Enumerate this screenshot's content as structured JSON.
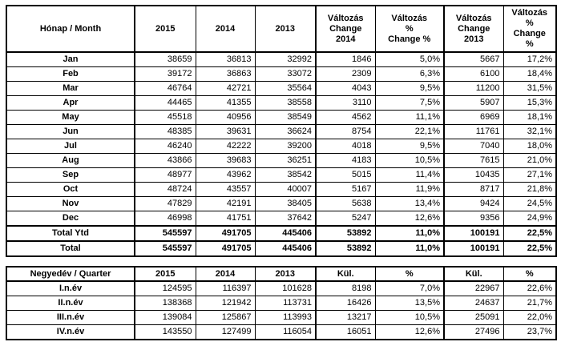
{
  "page": {
    "background_color": "#ffffff",
    "border_color": "#000000",
    "text_color": "#000000"
  },
  "monthly_table": {
    "headers": [
      "Hónap / Month",
      "2015",
      "2014",
      "2013",
      "Változás\nChange\n2014",
      "Változás\n%\nChange %",
      "Változás\nChange\n2013",
      "Változás\n%\nChange\n%"
    ],
    "rows": [
      {
        "label": "Jan",
        "values": [
          "38659",
          "36813",
          "32992",
          "1846",
          "5,0%",
          "5667",
          "17,2%"
        ]
      },
      {
        "label": "Feb",
        "values": [
          "39172",
          "36863",
          "33072",
          "2309",
          "6,3%",
          "6100",
          "18,4%"
        ]
      },
      {
        "label": "Mar",
        "values": [
          "46764",
          "42721",
          "35564",
          "4043",
          "9,5%",
          "11200",
          "31,5%"
        ]
      },
      {
        "label": "Apr",
        "values": [
          "44465",
          "41355",
          "38558",
          "3110",
          "7,5%",
          "5907",
          "15,3%"
        ]
      },
      {
        "label": "May",
        "values": [
          "45518",
          "40956",
          "38549",
          "4562",
          "11,1%",
          "6969",
          "18,1%"
        ]
      },
      {
        "label": "Jun",
        "values": [
          "48385",
          "39631",
          "36624",
          "8754",
          "22,1%",
          "11761",
          "32,1%"
        ]
      },
      {
        "label": "Jul",
        "values": [
          "46240",
          "42222",
          "39200",
          "4018",
          "9,5%",
          "7040",
          "18,0%"
        ]
      },
      {
        "label": "Aug",
        "values": [
          "43866",
          "39683",
          "36251",
          "4183",
          "10,5%",
          "7615",
          "21,0%"
        ]
      },
      {
        "label": "Sep",
        "values": [
          "48977",
          "43962",
          "38542",
          "5015",
          "11,4%",
          "10435",
          "27,1%"
        ]
      },
      {
        "label": "Oct",
        "values": [
          "48724",
          "43557",
          "40007",
          "5167",
          "11,9%",
          "8717",
          "21,8%"
        ]
      },
      {
        "label": "Nov",
        "values": [
          "47829",
          "42191",
          "38405",
          "5638",
          "13,4%",
          "9424",
          "24,5%"
        ]
      },
      {
        "label": "Dec",
        "values": [
          "46998",
          "41751",
          "37642",
          "5247",
          "12,6%",
          "9356",
          "24,9%"
        ]
      }
    ],
    "total_rows": [
      {
        "label": "Total Ytd",
        "values": [
          "545597",
          "491705",
          "445406",
          "53892",
          "11,0%",
          "100191",
          "22,5%"
        ]
      },
      {
        "label": "Total",
        "values": [
          "545597",
          "491705",
          "445406",
          "53892",
          "11,0%",
          "100191",
          "22,5%"
        ]
      }
    ]
  },
  "quarterly_table": {
    "headers": [
      "Negyedév / Quarter",
      "2015",
      "2014",
      "2013",
      "Kül.",
      "%",
      "Kül.",
      "%"
    ],
    "rows": [
      {
        "label": "I.n.év",
        "values": [
          "124595",
          "116397",
          "101628",
          "8198",
          "7,0%",
          "22967",
          "22,6%"
        ]
      },
      {
        "label": "II.n.év",
        "values": [
          "138368",
          "121942",
          "113731",
          "16426",
          "13,5%",
          "24637",
          "21,7%"
        ]
      },
      {
        "label": "III.n.év",
        "values": [
          "139084",
          "125867",
          "113993",
          "13217",
          "10,5%",
          "25091",
          "22,0%"
        ]
      },
      {
        "label": "IV.n.év",
        "values": [
          "143550",
          "127499",
          "116054",
          "16051",
          "12,6%",
          "27496",
          "23,7%"
        ]
      }
    ]
  }
}
